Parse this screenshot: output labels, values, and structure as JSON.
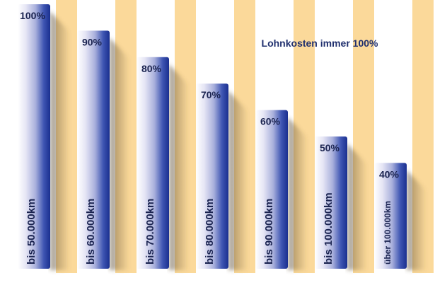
{
  "chart_data": {
    "type": "bar",
    "title": "Lohnkosten immer 100%",
    "categories": [
      "bis 50.000km",
      "bis 60.000km",
      "bis 70.000km",
      "bis 80.000km",
      "bis 90.000km",
      "bis 100.000km",
      "über 100.000km"
    ],
    "values": [
      100,
      90,
      80,
      70,
      60,
      50,
      40
    ],
    "value_labels": [
      "100%",
      "90%",
      "80%",
      "70%",
      "60%",
      "50%",
      "40%"
    ],
    "ylim": [
      0,
      100
    ],
    "xlabel": "",
    "ylabel": "",
    "colors": {
      "stripe": "#fbd99a",
      "bar_light": "#e8e8f6",
      "bar_dark": "#1d3aa0",
      "text": "#1a2350"
    }
  }
}
